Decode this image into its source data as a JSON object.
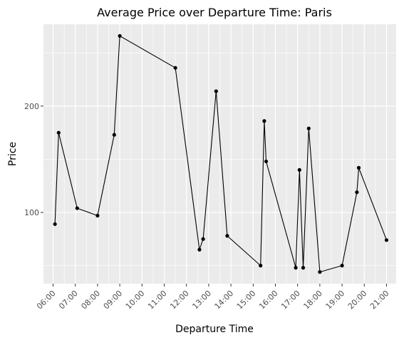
{
  "chart_data": {
    "type": "line",
    "title": "Average Price over Departure Time: Paris",
    "xlabel": "Departure Time",
    "ylabel": "Price",
    "x_ticks": [
      "06:00",
      "07:00",
      "08:00",
      "09:00",
      "10:00",
      "11:00",
      "12:00",
      "13:00",
      "14:00",
      "15:00",
      "16:00",
      "17:00",
      "18:00",
      "19:00",
      "20:00",
      "21:00"
    ],
    "y_ticks": [
      100,
      200
    ],
    "xlim": [
      "05:34",
      "21:26"
    ],
    "ylim": [
      33,
      277
    ],
    "grid": true,
    "points": [
      {
        "x": "06:05",
        "y": 89
      },
      {
        "x": "06:15",
        "y": 175
      },
      {
        "x": "07:05",
        "y": 104
      },
      {
        "x": "08:00",
        "y": 97
      },
      {
        "x": "08:45",
        "y": 173
      },
      {
        "x": "09:00",
        "y": 266
      },
      {
        "x": "11:30",
        "y": 236
      },
      {
        "x": "12:35",
        "y": 65
      },
      {
        "x": "12:45",
        "y": 75
      },
      {
        "x": "13:20",
        "y": 214
      },
      {
        "x": "13:50",
        "y": 78
      },
      {
        "x": "15:20",
        "y": 50
      },
      {
        "x": "15:30",
        "y": 186
      },
      {
        "x": "15:35",
        "y": 148
      },
      {
        "x": "16:55",
        "y": 48
      },
      {
        "x": "17:05",
        "y": 140
      },
      {
        "x": "17:15",
        "y": 48
      },
      {
        "x": "17:30",
        "y": 179
      },
      {
        "x": "18:00",
        "y": 44
      },
      {
        "x": "19:00",
        "y": 50
      },
      {
        "x": "19:40",
        "y": 119
      },
      {
        "x": "19:45",
        "y": 142
      },
      {
        "x": "21:00",
        "y": 74
      }
    ]
  }
}
